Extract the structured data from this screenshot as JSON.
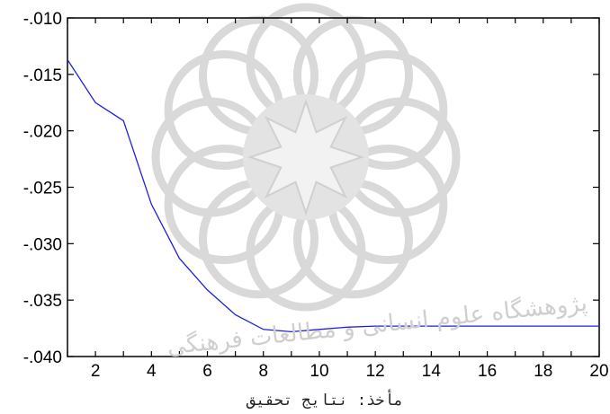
{
  "chart_data": {
    "type": "line",
    "title": "",
    "xlabel": "",
    "ylabel": "",
    "x": [
      1,
      2,
      3,
      4,
      5,
      6,
      7,
      8,
      9,
      10,
      11,
      12,
      13,
      14,
      15,
      16,
      17,
      18,
      19,
      20
    ],
    "series": [
      {
        "color": "#1f1fe0",
        "values": [
          -0.0137,
          -0.0175,
          -0.0191,
          -0.0265,
          -0.0313,
          -0.0341,
          -0.0363,
          -0.0376,
          -0.0378,
          -0.0376,
          -0.0374,
          -0.0373,
          -0.0373,
          -0.0373,
          -0.0373,
          -0.0373,
          -0.0373,
          -0.0373,
          -0.0373,
          -0.0373
        ]
      }
    ],
    "xlim": [
      1,
      20
    ],
    "ylim": [
      -0.04,
      -0.01
    ],
    "x_tick_labels": [
      "2",
      "4",
      "6",
      "8",
      "10",
      "12",
      "14",
      "16",
      "18",
      "20"
    ],
    "x_tick_values": [
      2,
      4,
      6,
      8,
      10,
      12,
      14,
      16,
      18,
      20
    ],
    "y_tick_labels": [
      "-.010",
      "-.015",
      "-.020",
      "-.025",
      "-.030",
      "-.035",
      "-.040"
    ],
    "y_tick_values": [
      -0.01,
      -0.015,
      -0.02,
      -0.025,
      -0.03,
      -0.035,
      -0.04
    ],
    "grid": false
  },
  "source_note": "مأخذ: نتایج تحقیق",
  "watermark_text": "پژوهشگاه علوم انسانی و مطالعات فرهنگی"
}
